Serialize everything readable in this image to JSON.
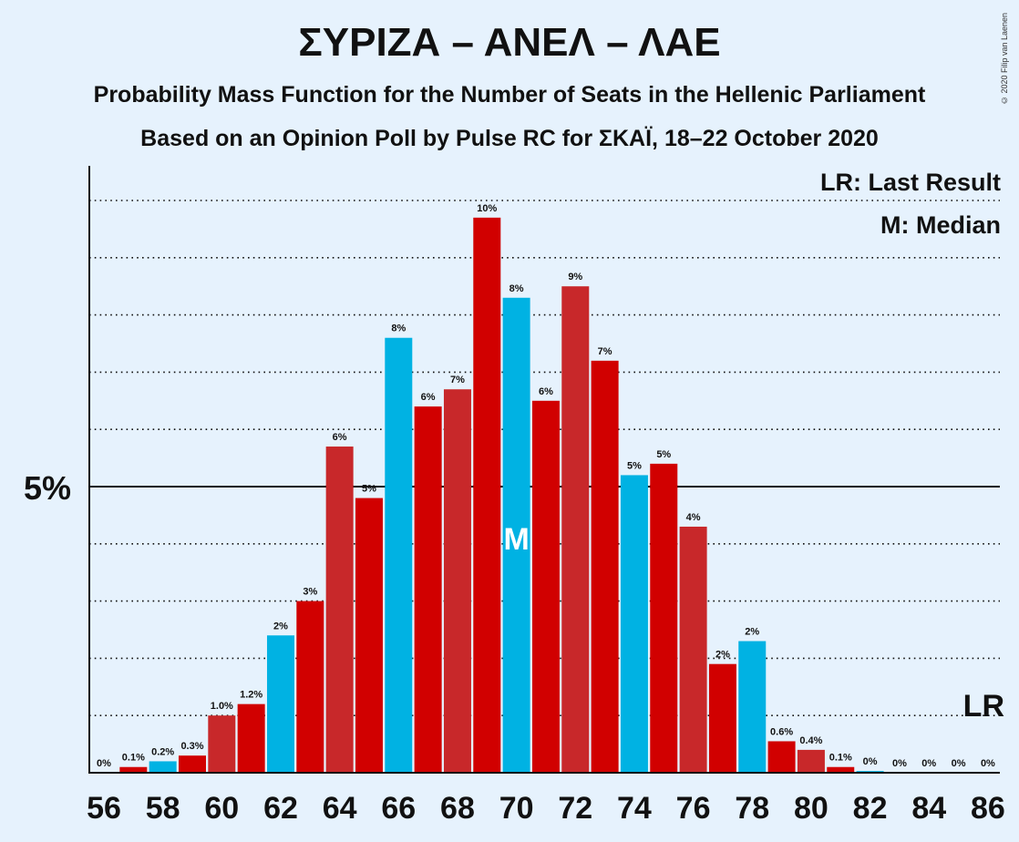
{
  "header": {
    "title": "ΣΥΡΙΖΑ – ΑΝΕΛ – ΛΑΕ",
    "subtitle1": "Probability Mass Function for the Number of Seats in the Hellenic Parliament",
    "subtitle2": "Based on an Opinion Poll by Pulse RC for ΣΚΑΪ, 18–22 October 2020",
    "copyright": "© 2020 Filip van Laenen"
  },
  "legend": {
    "lr": "LR: Last Result",
    "median": "M: Median"
  },
  "chart_data": {
    "type": "bar",
    "x": [
      56,
      57,
      58,
      59,
      60,
      61,
      62,
      63,
      64,
      65,
      66,
      67,
      68,
      69,
      70,
      71,
      72,
      73,
      74,
      75,
      76,
      77,
      78,
      79,
      80,
      81,
      82,
      83,
      84,
      85,
      86
    ],
    "values": [
      0.0,
      0.1,
      0.2,
      0.3,
      1.0,
      1.2,
      2.4,
      3.0,
      5.7,
      4.8,
      7.6,
      6.4,
      6.7,
      9.7,
      8.3,
      6.5,
      8.5,
      7.2,
      5.2,
      5.4,
      4.3,
      1.9,
      2.3,
      0.55,
      0.4,
      0.1,
      0.03,
      0,
      0,
      0,
      0
    ],
    "labels": [
      "0%",
      "0.1%",
      "0.2%",
      "0.3%",
      "1.0%",
      "1.2%",
      "2%",
      "3%",
      "6%",
      "5%",
      "8%",
      "6%",
      "7%",
      "10%",
      "8%",
      "6%",
      "9%",
      "7%",
      "5%",
      "5%",
      "4%",
      "2%",
      "2%",
      "0.6%",
      "0.4%",
      "0.1%",
      "0%",
      "0%",
      "0%",
      "0%",
      "0%"
    ],
    "x_tick_labels": [
      "56",
      "58",
      "60",
      "62",
      "64",
      "66",
      "68",
      "70",
      "72",
      "74",
      "76",
      "78",
      "80",
      "82",
      "84",
      "86"
    ],
    "y_tick_label": "5%",
    "ylim": [
      0,
      10.6
    ],
    "gridline_interval": 1,
    "median": 70,
    "median_marker": "M",
    "last_result": 86,
    "last_result_marker": "LR",
    "colors": {
      "red": "#c8282a",
      "red_alt": "#d10000",
      "blue": "#00b2e3",
      "background": "#e6f2fd"
    }
  }
}
